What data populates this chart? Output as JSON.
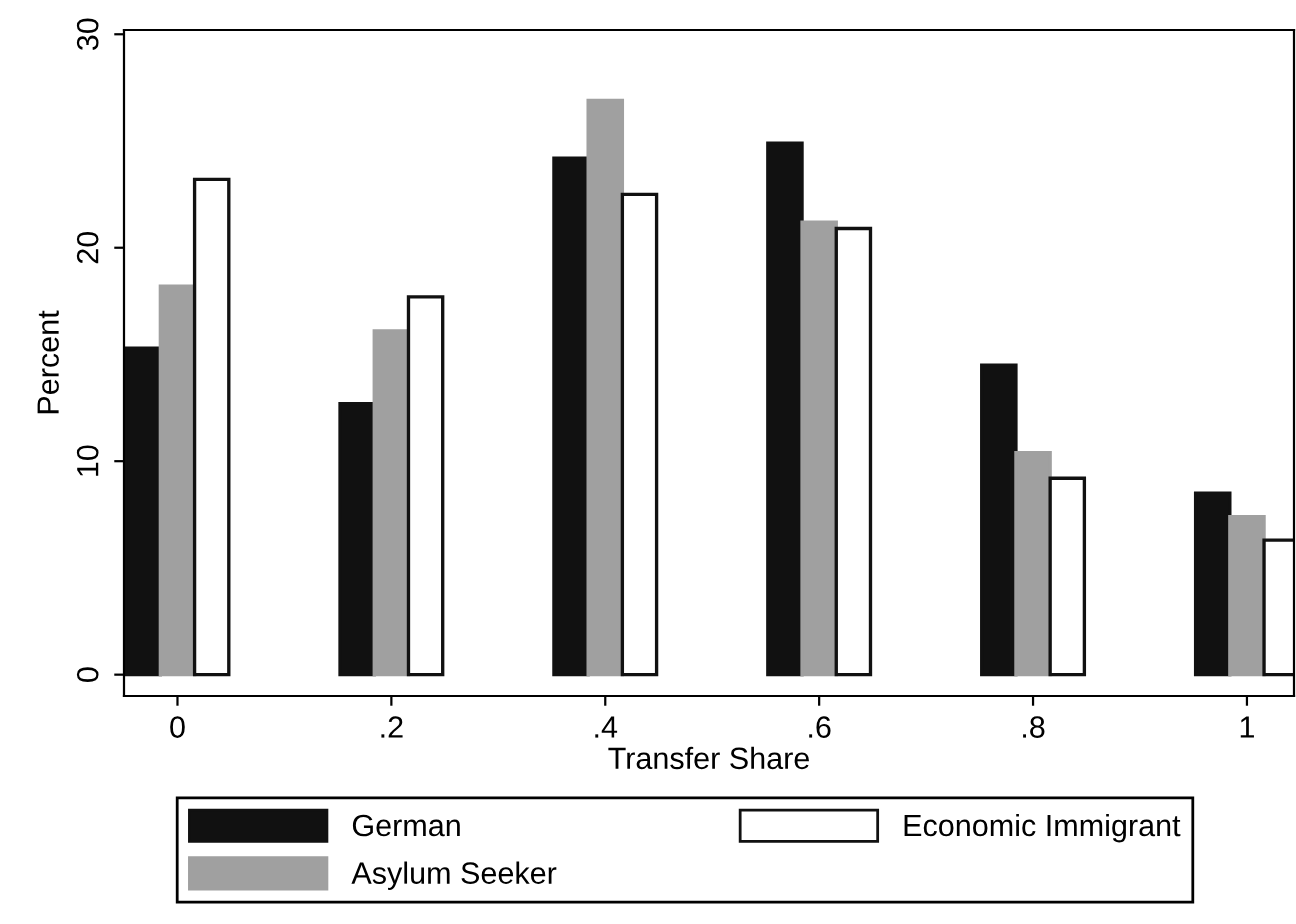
{
  "chart_data": {
    "type": "bar",
    "xlabel": "Transfer Share",
    "ylabel": "Percent",
    "categories": [
      "0",
      ".2",
      ".4",
      ".6",
      ".8",
      "1"
    ],
    "series": [
      {
        "name": "German",
        "color": "#111111",
        "values": [
          15.3,
          12.7,
          24.2,
          24.9,
          14.5,
          8.5
        ]
      },
      {
        "name": "Asylum Seeker",
        "color": "#a0a0a0",
        "values": [
          18.2,
          16.1,
          26.9,
          21.2,
          10.4,
          7.4
        ]
      },
      {
        "name": "Economic Immigrant",
        "color": "#ffffff",
        "values": [
          23.2,
          17.7,
          22.5,
          20.9,
          9.2,
          6.3
        ]
      }
    ],
    "ylim": [
      -1,
      30.2
    ],
    "yticks": [
      0,
      10,
      20,
      30
    ],
    "grid": false,
    "legend": "bottom"
  }
}
